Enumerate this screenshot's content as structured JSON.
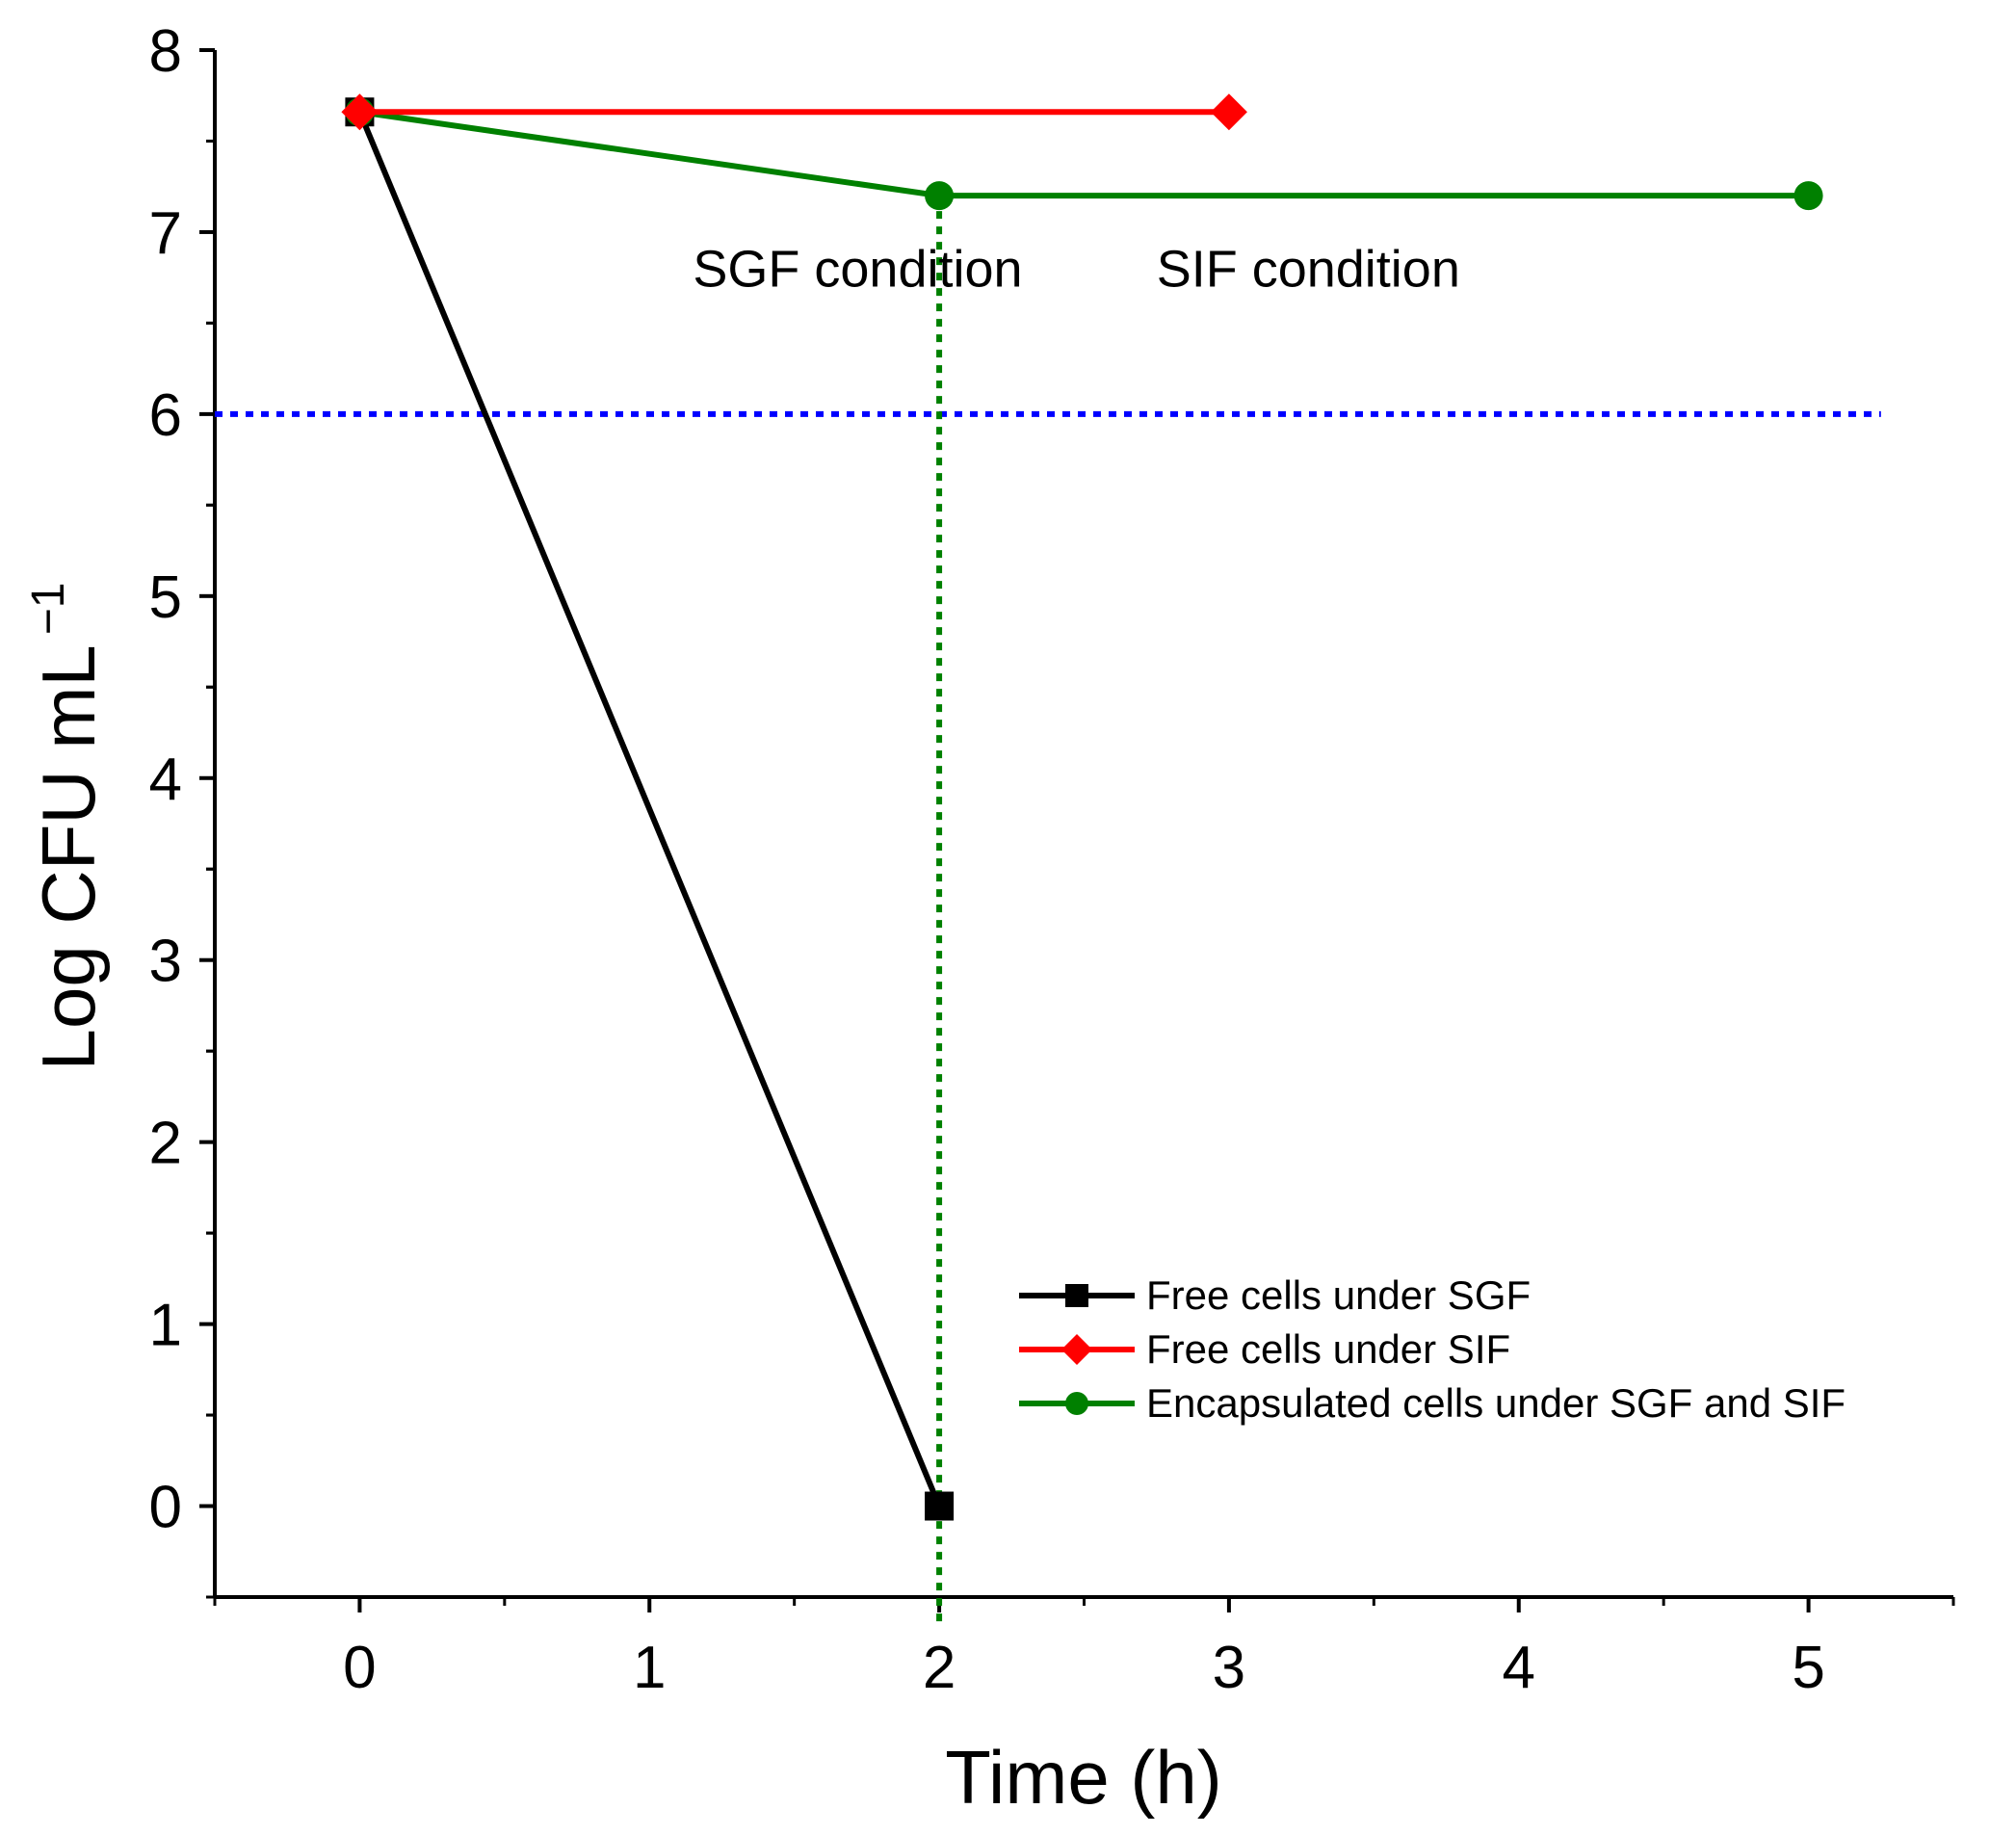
{
  "chart_data": {
    "type": "line",
    "title": "",
    "xlabel": "Time (h)",
    "ylabel_main": "Log CFU mL",
    "ylabel_superscript": "−1",
    "xlim": [
      -0.5,
      5.5
    ],
    "ylim": [
      -0.5,
      8
    ],
    "x_ticks": [
      0,
      1,
      2,
      3,
      4,
      5
    ],
    "y_ticks": [
      0,
      1,
      2,
      3,
      4,
      5,
      6,
      7,
      8
    ],
    "x_tick_labels": [
      "0",
      "1",
      "2",
      "3",
      "4",
      "5"
    ],
    "y_tick_labels": [
      "0",
      "1",
      "2",
      "3",
      "4",
      "5",
      "6",
      "7",
      "8"
    ],
    "grid": false,
    "legend_position": "bottom-right",
    "series": [
      {
        "name": "Free cells under SGF",
        "color": "#000000",
        "marker": "square",
        "x": [
          0,
          2
        ],
        "y": [
          7.66,
          0
        ]
      },
      {
        "name": "Free cells under SIF",
        "color": "#ff0000",
        "marker": "diamond",
        "x": [
          0,
          3
        ],
        "y": [
          7.66,
          7.66
        ]
      },
      {
        "name": "Encapsulated cells under SGF and SIF",
        "color": "#008000",
        "marker": "circle",
        "x": [
          0,
          2,
          5
        ],
        "y": [
          7.66,
          7.2,
          7.2
        ]
      }
    ],
    "reference_lines": [
      {
        "orientation": "horizontal",
        "value": 6,
        "color": "#0000ff",
        "style": "dotted"
      },
      {
        "orientation": "vertical",
        "value": 2,
        "color": "#008000",
        "style": "dotted"
      }
    ],
    "annotations": [
      {
        "text": "SGF condition",
        "x": 1.15,
        "y": 6.7
      },
      {
        "text": "SIF condition",
        "x": 2.75,
        "y": 6.7
      }
    ]
  }
}
